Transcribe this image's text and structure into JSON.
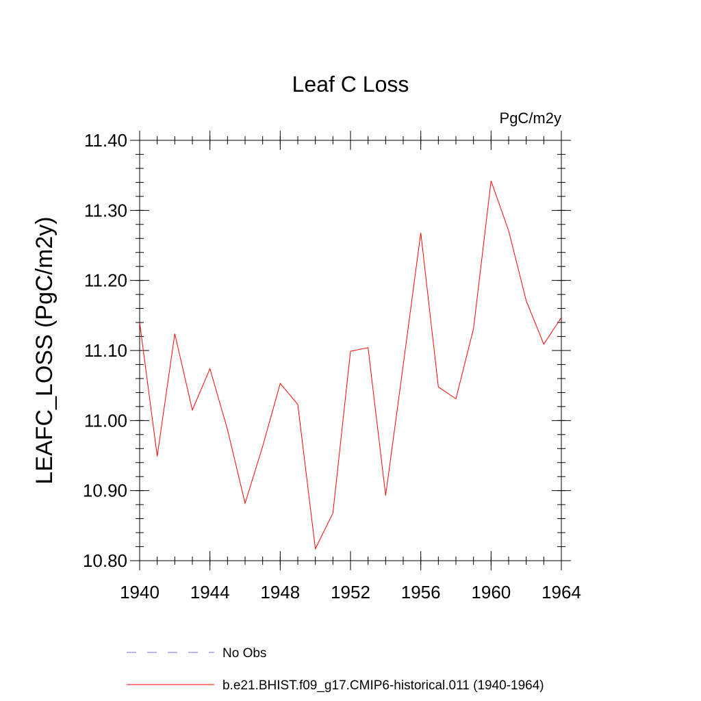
{
  "chart_data": {
    "type": "line",
    "title": "Leaf C Loss",
    "units": "PgC/m2y",
    "xlabel": "",
    "ylabel": "LEAFC_LOSS  (PgC/m2y)",
    "xlim": [
      1940,
      1964
    ],
    "ylim": [
      10.8,
      11.4
    ],
    "x_ticks": [
      1940,
      1944,
      1948,
      1952,
      1956,
      1960,
      1964
    ],
    "x_tick_labels": [
      "1940",
      "1944",
      "1948",
      "1952",
      "1956",
      "1960",
      "1964"
    ],
    "y_ticks": [
      10.8,
      10.9,
      11.0,
      11.1,
      11.2,
      11.3,
      11.4
    ],
    "y_tick_labels": [
      "10.80",
      "10.90",
      "11.00",
      "11.10",
      "11.20",
      "11.30",
      "11.40"
    ],
    "grid": false,
    "legend_position": "bottom",
    "series": [
      {
        "name": "b.e21.BHIST.f09_g17.CMIP6-historical.011 (1940-1964)",
        "color": "#ff0000",
        "style": "solid",
        "x": [
          1940,
          1941,
          1942,
          1943,
          1944,
          1945,
          1946,
          1947,
          1948,
          1949,
          1950,
          1951,
          1952,
          1953,
          1954,
          1955,
          1956,
          1957,
          1958,
          1959,
          1960,
          1961,
          1962,
          1963,
          1964
        ],
        "values": [
          11.14,
          10.949,
          11.124,
          11.015,
          11.074,
          10.987,
          10.882,
          10.963,
          11.053,
          11.023,
          10.817,
          10.868,
          11.099,
          11.104,
          10.893,
          11.079,
          11.268,
          11.048,
          11.031,
          11.131,
          11.342,
          11.271,
          11.171,
          11.109,
          11.147
        ]
      }
    ],
    "legend": [
      {
        "label": "No Obs",
        "color": "#7b68c8",
        "style": "dashed"
      },
      {
        "label": "b.e21.BHIST.f09_g17.CMIP6-historical.011 (1940-1964)",
        "color": "#ff0000",
        "style": "solid"
      }
    ]
  }
}
